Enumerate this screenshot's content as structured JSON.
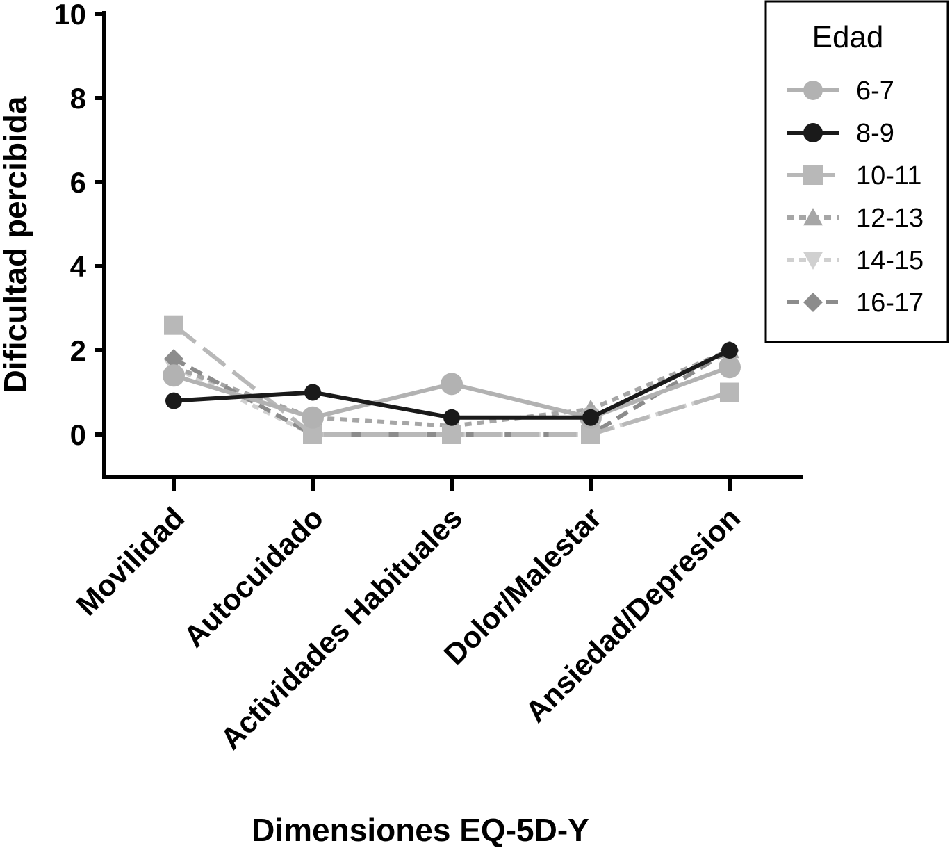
{
  "chart_data": {
    "type": "line",
    "title": "",
    "xlabel": "Dimensiones EQ-5D-Y",
    "ylabel": "Dificultad percibida",
    "categories": [
      "Movilidad",
      "Autocuidado",
      "Actividades Habituales",
      "Dolor/Malestar",
      "Ansiedad/Depresion"
    ],
    "ylim": [
      -1,
      10
    ],
    "yticks": [
      "0",
      "2",
      "4",
      "6",
      "8",
      "10"
    ],
    "grid": false,
    "legend": {
      "title": "Edad",
      "placement": "top-right"
    },
    "series": [
      {
        "name": "6-7",
        "values": [
          1.4,
          0.4,
          1.2,
          0.4,
          1.6
        ],
        "color": "#b2b2b2",
        "marker": "circle",
        "line": "solid"
      },
      {
        "name": "8-9",
        "values": [
          0.8,
          1.0,
          0.4,
          0.4,
          2.0
        ],
        "color": "#1a1a1a",
        "marker": "circle",
        "line": "solid"
      },
      {
        "name": "10-11",
        "values": [
          2.6,
          0.0,
          0.0,
          0.0,
          1.0
        ],
        "color": "#b8b8b8",
        "marker": "square",
        "line": "longdash"
      },
      {
        "name": "12-13",
        "values": [
          1.6,
          0.4,
          0.2,
          0.6,
          2.0
        ],
        "color": "#a6a6a6",
        "marker": "triangle-up",
        "line": "dotted"
      },
      {
        "name": "14-15",
        "values": [
          1.6,
          0.0,
          0.0,
          0.0,
          1.0
        ],
        "color": "#d0d0d0",
        "marker": "triangle-down",
        "line": "dotted"
      },
      {
        "name": "16-17",
        "values": [
          1.8,
          0.0,
          0.0,
          0.0,
          2.0
        ],
        "color": "#8c8c8c",
        "marker": "diamond",
        "line": "dashed"
      }
    ]
  }
}
